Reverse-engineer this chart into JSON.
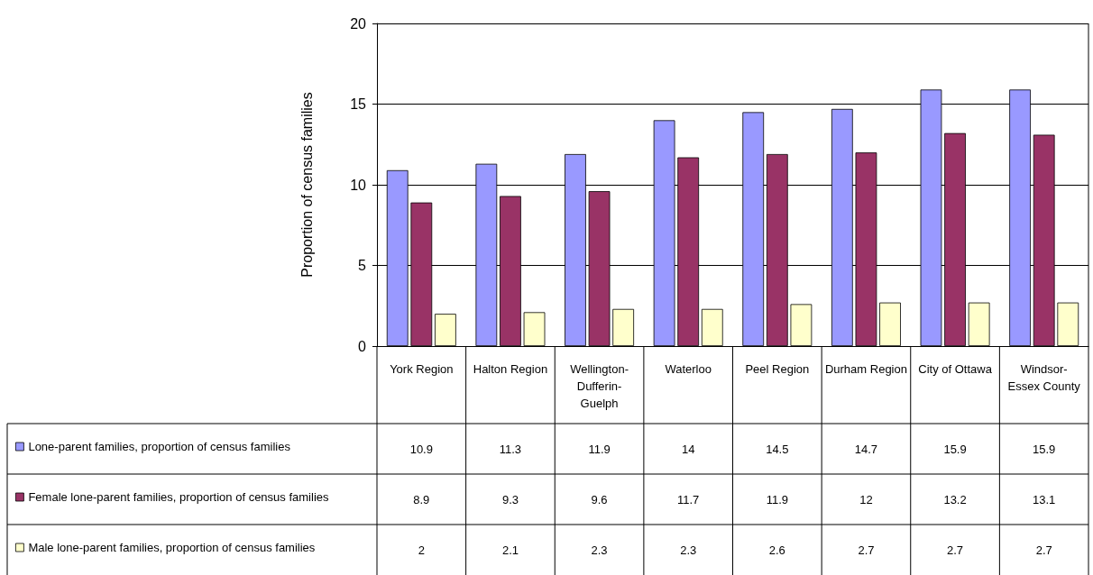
{
  "chart_data": {
    "type": "bar",
    "ylabel": "Proportion of census families",
    "categories": [
      "York Region",
      "Halton Region",
      "Wellington-Dufferin-Guelph",
      "Waterloo",
      "Peel Region",
      "Durham Region",
      "City of Ottawa",
      "Windsor-Essex County"
    ],
    "series": [
      {
        "name": "Lone-parent families, proportion of census families",
        "color": "#9999ff",
        "values": [
          10.9,
          11.3,
          11.9,
          14,
          14.5,
          14.7,
          15.9,
          15.9
        ]
      },
      {
        "name": "Female lone-parent families, proportion of census families",
        "color": "#993366",
        "values": [
          8.9,
          9.3,
          9.6,
          11.7,
          11.9,
          12,
          13.2,
          13.1
        ]
      },
      {
        "name": "Male lone-parent families, proportion of census families",
        "color": "#ffffcc",
        "values": [
          2,
          2.1,
          2.3,
          2.3,
          2.6,
          2.7,
          2.7,
          2.7
        ]
      }
    ],
    "ylim": [
      0,
      20
    ],
    "yticks": [
      0,
      5,
      10,
      15,
      20
    ],
    "grid": "y",
    "legend": "bottom",
    "data_labels": true
  }
}
